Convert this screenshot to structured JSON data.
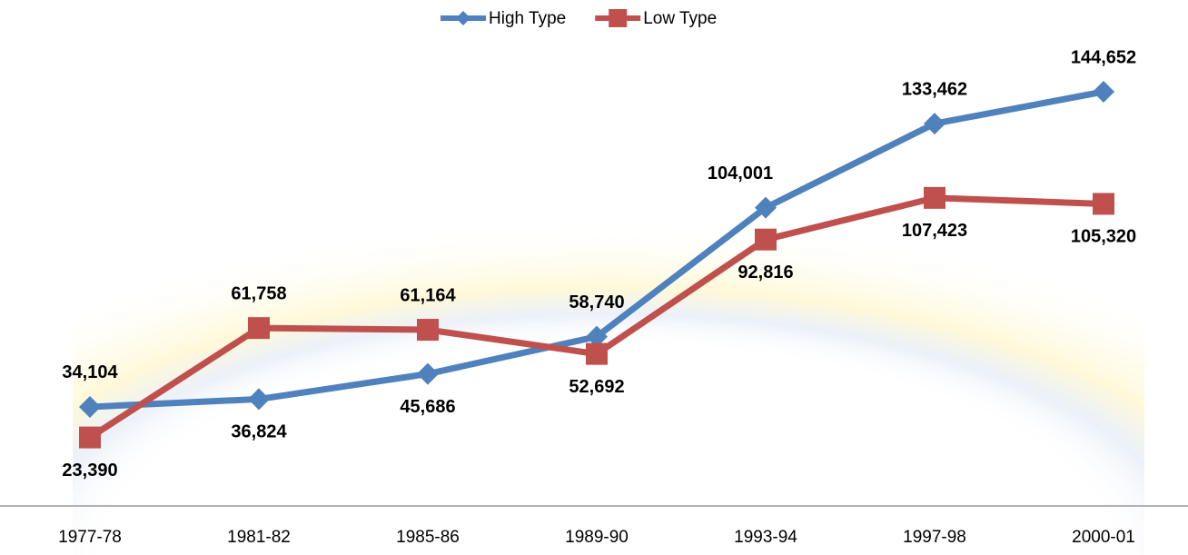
{
  "chart_data": {
    "type": "line",
    "categories": [
      "1977-78",
      "1981-82",
      "1985-86",
      "1989-90",
      "1993-94",
      "1997-98",
      "2000-01"
    ],
    "series": [
      {
        "name": "High Type",
        "color": "#4f81bd",
        "marker": "diamond",
        "values": [
          34104,
          36824,
          45686,
          58740,
          104001,
          133462,
          144652
        ],
        "value_labels": [
          "34,104",
          "36,824",
          "45,686",
          "58,740",
          "104,001",
          "133,462",
          "144,652"
        ]
      },
      {
        "name": "Low Type",
        "color": "#c0504d",
        "marker": "square",
        "values": [
          23390,
          61758,
          61164,
          52692,
          92816,
          107423,
          105320
        ],
        "value_labels": [
          "23,390",
          "61,758",
          "61,164",
          "52,692",
          "92,816",
          "107,423",
          "105,320"
        ]
      }
    ],
    "legend": "top"
  }
}
